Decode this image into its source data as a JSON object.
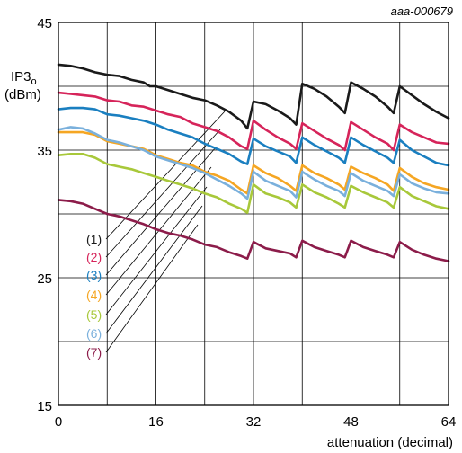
{
  "chart_data": {
    "type": "line",
    "figure_code": "aaa-000679",
    "ylabel": "IP3",
    "ylabel_subscript": "o",
    "yunit": "(dBm)",
    "xlabel": "attenuation (decimal)",
    "xlim": [
      0,
      64
    ],
    "ylim": [
      15,
      45
    ],
    "xticks": [
      "0",
      "16",
      "32",
      "48",
      "64"
    ],
    "yticks": [
      "45",
      "35",
      "25",
      "15"
    ],
    "grid": true,
    "series": [
      {
        "name": "(1)",
        "color": "#1a1a1a",
        "x": [
          0,
          2,
          4,
          6,
          8,
          10,
          12,
          14,
          15,
          16,
          18,
          20,
          22,
          24,
          26,
          28,
          30,
          31,
          32,
          34,
          36,
          38,
          39,
          40,
          42,
          44,
          46,
          47,
          48,
          50,
          52,
          54,
          55,
          56,
          58,
          60,
          62,
          64
        ],
        "y": [
          41.7,
          41.6,
          41.4,
          41.1,
          40.9,
          40.8,
          40.5,
          40.3,
          40.0,
          40.0,
          39.7,
          39.4,
          39.1,
          38.9,
          38.5,
          38.0,
          37.3,
          36.7,
          38.8,
          38.6,
          38.1,
          37.5,
          37.0,
          40.2,
          39.8,
          39.2,
          38.4,
          37.9,
          40.3,
          39.8,
          39.2,
          38.4,
          37.9,
          40.0,
          39.3,
          38.6,
          38.0,
          37.5
        ]
      },
      {
        "name": "(2)",
        "color": "#d6245a",
        "x": [
          0,
          2,
          4,
          6,
          8,
          10,
          12,
          14,
          16,
          18,
          20,
          22,
          24,
          26,
          28,
          30,
          31,
          32,
          34,
          36,
          38,
          39,
          40,
          42,
          44,
          46,
          47,
          48,
          50,
          52,
          54,
          55,
          56,
          58,
          60,
          62,
          64
        ],
        "y": [
          39.5,
          39.4,
          39.3,
          39.2,
          38.9,
          38.8,
          38.5,
          38.4,
          38.1,
          37.8,
          37.6,
          37.1,
          36.8,
          36.5,
          36.0,
          35.3,
          35.1,
          37.3,
          36.6,
          36.0,
          35.5,
          35.1,
          37.1,
          36.5,
          35.9,
          35.4,
          35.0,
          37.2,
          36.6,
          36.0,
          35.5,
          35.0,
          37.0,
          36.4,
          36.0,
          35.6,
          35.5
        ]
      },
      {
        "name": "(3)",
        "color": "#1a7fc0",
        "x": [
          0,
          2,
          4,
          6,
          8,
          10,
          12,
          14,
          16,
          18,
          20,
          22,
          24,
          26,
          28,
          30,
          31,
          32,
          34,
          36,
          38,
          39,
          40,
          42,
          44,
          46,
          47,
          48,
          50,
          52,
          54,
          55,
          56,
          58,
          60,
          62,
          64
        ],
        "y": [
          38.2,
          38.3,
          38.3,
          38.2,
          37.8,
          37.7,
          37.5,
          37.3,
          37.0,
          36.6,
          36.3,
          36.0,
          35.5,
          35.1,
          34.7,
          34.1,
          33.9,
          35.9,
          35.3,
          34.9,
          34.5,
          34.0,
          36.0,
          35.4,
          34.9,
          34.4,
          34.0,
          36.0,
          35.4,
          34.9,
          34.4,
          34.0,
          35.8,
          35.0,
          34.5,
          34.0,
          33.8
        ]
      },
      {
        "name": "(4)",
        "color": "#f5a623",
        "x": [
          0,
          2,
          4,
          6,
          8,
          10,
          12,
          14,
          16,
          18,
          20,
          22,
          24,
          26,
          28,
          30,
          31,
          32,
          34,
          36,
          38,
          39,
          40,
          42,
          44,
          46,
          47,
          48,
          50,
          52,
          54,
          55,
          56,
          58,
          60,
          62,
          64
        ],
        "y": [
          36.4,
          36.4,
          36.4,
          36.2,
          35.7,
          35.5,
          35.3,
          35.1,
          34.6,
          34.3,
          34.0,
          33.8,
          33.3,
          33.0,
          32.6,
          31.9,
          31.6,
          33.8,
          33.2,
          32.8,
          32.2,
          31.8,
          33.8,
          33.2,
          32.8,
          32.3,
          31.9,
          33.7,
          33.2,
          32.8,
          32.3,
          31.8,
          33.6,
          32.9,
          32.4,
          32.1,
          31.9
        ]
      },
      {
        "name": "(5)",
        "color": "#a8c83a",
        "x": [
          0,
          2,
          4,
          6,
          8,
          10,
          12,
          14,
          16,
          18,
          20,
          22,
          24,
          26,
          28,
          30,
          31,
          32,
          34,
          36,
          38,
          39,
          40,
          42,
          44,
          46,
          47,
          48,
          50,
          52,
          54,
          55,
          56,
          58,
          60,
          62,
          64
        ],
        "y": [
          34.6,
          34.7,
          34.7,
          34.4,
          33.9,
          33.7,
          33.5,
          33.2,
          32.9,
          32.6,
          32.3,
          32.0,
          31.6,
          31.3,
          30.8,
          30.4,
          30.1,
          32.3,
          31.6,
          31.3,
          30.9,
          30.5,
          32.3,
          31.7,
          31.3,
          30.8,
          30.5,
          32.2,
          31.7,
          31.3,
          30.9,
          30.5,
          32.1,
          31.4,
          31.0,
          30.6,
          30.4
        ]
      },
      {
        "name": "(6)",
        "color": "#7ab0dc",
        "x": [
          0,
          2,
          4,
          6,
          8,
          10,
          12,
          14,
          16,
          18,
          20,
          22,
          24,
          26,
          28,
          30,
          31,
          32,
          34,
          36,
          38,
          39,
          40,
          42,
          44,
          46,
          47,
          48,
          50,
          52,
          54,
          55,
          56,
          58,
          60,
          62,
          64
        ],
        "y": [
          36.6,
          36.8,
          36.7,
          36.3,
          35.8,
          35.6,
          35.3,
          35.0,
          34.5,
          34.2,
          33.9,
          33.6,
          33.2,
          32.7,
          32.2,
          31.6,
          31.2,
          33.3,
          32.6,
          32.2,
          31.8,
          31.3,
          33.3,
          32.7,
          32.2,
          31.8,
          31.4,
          33.2,
          32.6,
          32.2,
          31.8,
          31.4,
          33.1,
          32.4,
          32.0,
          31.7,
          31.6
        ]
      },
      {
        "name": "(7)",
        "color": "#8c1c4a",
        "x": [
          0,
          2,
          4,
          6,
          8,
          10,
          12,
          14,
          16,
          18,
          20,
          22,
          24,
          26,
          28,
          30,
          31,
          32,
          34,
          36,
          38,
          39,
          40,
          42,
          44,
          46,
          47,
          48,
          50,
          52,
          54,
          55,
          56,
          58,
          60,
          62,
          64
        ],
        "y": [
          31.1,
          31.0,
          30.8,
          30.4,
          30.0,
          29.8,
          29.5,
          29.2,
          28.8,
          28.5,
          28.3,
          28.0,
          27.6,
          27.4,
          27.0,
          26.7,
          26.5,
          27.8,
          27.3,
          27.1,
          26.9,
          26.6,
          27.9,
          27.4,
          27.1,
          26.8,
          26.6,
          27.9,
          27.4,
          27.1,
          26.8,
          26.6,
          27.8,
          27.2,
          26.8,
          26.5,
          26.3
        ]
      }
    ]
  }
}
